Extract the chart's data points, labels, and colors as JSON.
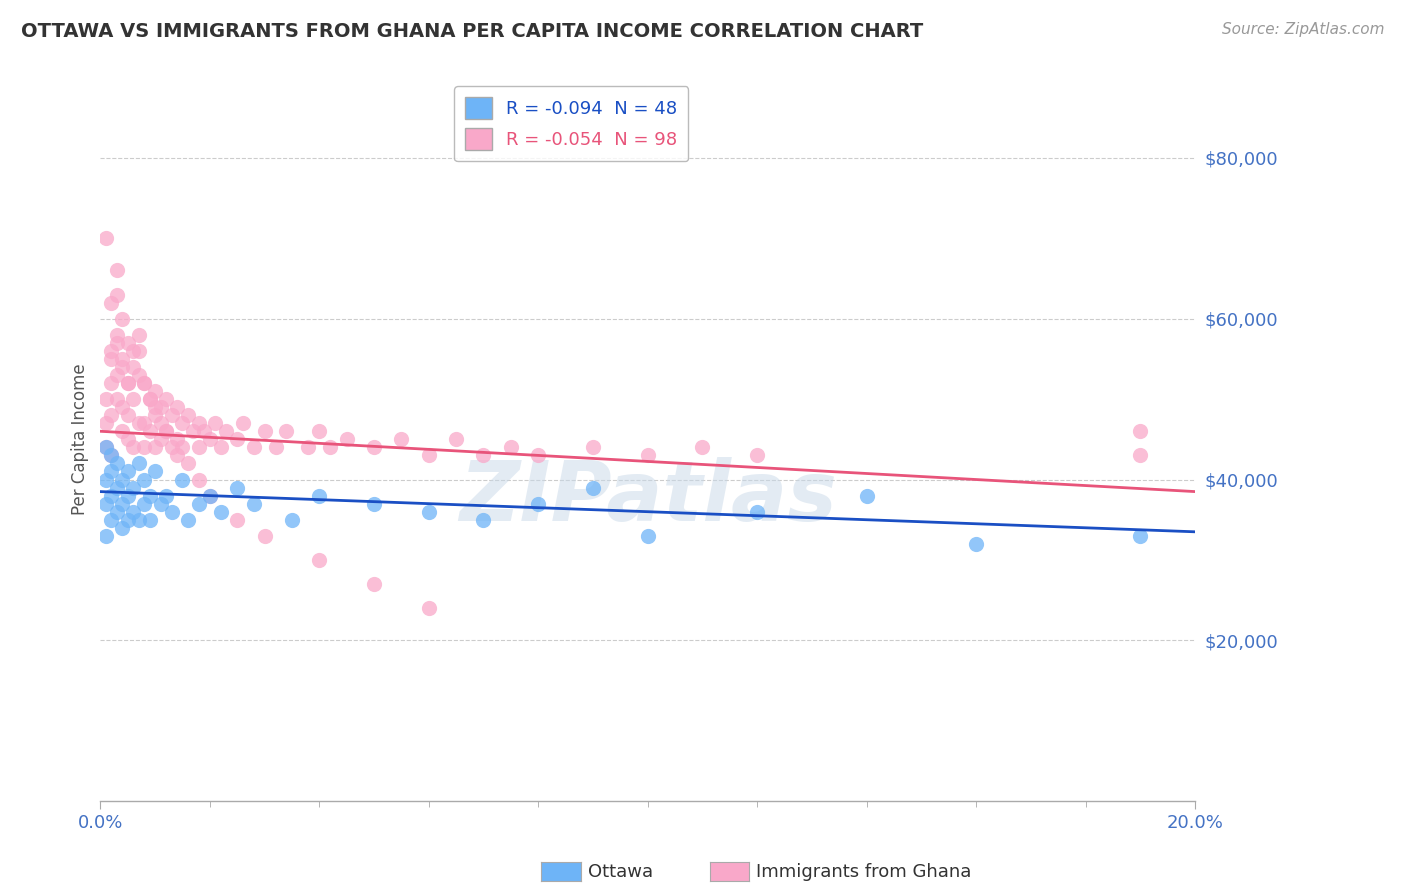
{
  "title": "OTTAWA VS IMMIGRANTS FROM GHANA PER CAPITA INCOME CORRELATION CHART",
  "source": "Source: ZipAtlas.com",
  "ylabel": "Per Capita Income",
  "xlim": [
    0.0,
    0.2
  ],
  "ylim": [
    0,
    90000
  ],
  "ottawa_color": "#6eb4f7",
  "ghana_color": "#f9a8c9",
  "ottawa_line_color": "#1a4fc4",
  "ghana_line_color": "#e8547a",
  "watermark": "ZIPatlas",
  "ottawa_R": "-0.094",
  "ottawa_N": "48",
  "ghana_R": "-0.054",
  "ghana_N": "98",
  "ottawa_line_x0": 0.0,
  "ottawa_line_y0": 38500,
  "ottawa_line_x1": 0.2,
  "ottawa_line_y1": 33500,
  "ghana_line_x0": 0.0,
  "ghana_line_y0": 46000,
  "ghana_line_x1": 0.2,
  "ghana_line_y1": 38500,
  "ottawa_x": [
    0.001,
    0.001,
    0.001,
    0.001,
    0.002,
    0.002,
    0.002,
    0.002,
    0.003,
    0.003,
    0.003,
    0.004,
    0.004,
    0.004,
    0.005,
    0.005,
    0.005,
    0.006,
    0.006,
    0.007,
    0.007,
    0.008,
    0.008,
    0.009,
    0.009,
    0.01,
    0.011,
    0.012,
    0.013,
    0.015,
    0.016,
    0.018,
    0.02,
    0.022,
    0.025,
    0.028,
    0.035,
    0.04,
    0.05,
    0.06,
    0.07,
    0.08,
    0.09,
    0.1,
    0.12,
    0.14,
    0.16,
    0.19
  ],
  "ottawa_y": [
    40000,
    37000,
    44000,
    33000,
    41000,
    38000,
    35000,
    43000,
    39000,
    36000,
    42000,
    40000,
    37000,
    34000,
    41000,
    38000,
    35000,
    39000,
    36000,
    42000,
    35000,
    40000,
    37000,
    38000,
    35000,
    41000,
    37000,
    38000,
    36000,
    40000,
    35000,
    37000,
    38000,
    36000,
    39000,
    37000,
    35000,
    38000,
    37000,
    36000,
    35000,
    37000,
    39000,
    33000,
    36000,
    38000,
    32000,
    33000
  ],
  "ghana_x": [
    0.001,
    0.001,
    0.001,
    0.002,
    0.002,
    0.002,
    0.002,
    0.003,
    0.003,
    0.003,
    0.003,
    0.004,
    0.004,
    0.004,
    0.005,
    0.005,
    0.005,
    0.006,
    0.006,
    0.006,
    0.007,
    0.007,
    0.007,
    0.008,
    0.008,
    0.008,
    0.009,
    0.009,
    0.01,
    0.01,
    0.01,
    0.011,
    0.011,
    0.012,
    0.012,
    0.013,
    0.013,
    0.014,
    0.014,
    0.015,
    0.015,
    0.016,
    0.017,
    0.018,
    0.018,
    0.019,
    0.02,
    0.021,
    0.022,
    0.023,
    0.025,
    0.026,
    0.028,
    0.03,
    0.032,
    0.034,
    0.038,
    0.04,
    0.042,
    0.045,
    0.05,
    0.055,
    0.06,
    0.065,
    0.07,
    0.075,
    0.08,
    0.09,
    0.1,
    0.11,
    0.12,
    0.001,
    0.002,
    0.002,
    0.003,
    0.003,
    0.004,
    0.004,
    0.005,
    0.005,
    0.006,
    0.007,
    0.008,
    0.009,
    0.01,
    0.011,
    0.012,
    0.014,
    0.016,
    0.018,
    0.02,
    0.025,
    0.03,
    0.04,
    0.05,
    0.06,
    0.19,
    0.19
  ],
  "ghana_y": [
    50000,
    47000,
    44000,
    55000,
    52000,
    48000,
    43000,
    66000,
    63000,
    57000,
    50000,
    54000,
    49000,
    46000,
    52000,
    48000,
    45000,
    56000,
    50000,
    44000,
    58000,
    53000,
    47000,
    52000,
    47000,
    44000,
    50000,
    46000,
    51000,
    48000,
    44000,
    49000,
    45000,
    50000,
    46000,
    48000,
    44000,
    49000,
    45000,
    47000,
    44000,
    48000,
    46000,
    47000,
    44000,
    46000,
    45000,
    47000,
    44000,
    46000,
    45000,
    47000,
    44000,
    46000,
    44000,
    46000,
    44000,
    46000,
    44000,
    45000,
    44000,
    45000,
    43000,
    45000,
    43000,
    44000,
    43000,
    44000,
    43000,
    44000,
    43000,
    70000,
    62000,
    56000,
    58000,
    53000,
    60000,
    55000,
    57000,
    52000,
    54000,
    56000,
    52000,
    50000,
    49000,
    47000,
    46000,
    43000,
    42000,
    40000,
    38000,
    35000,
    33000,
    30000,
    27000,
    24000,
    46000,
    43000
  ]
}
